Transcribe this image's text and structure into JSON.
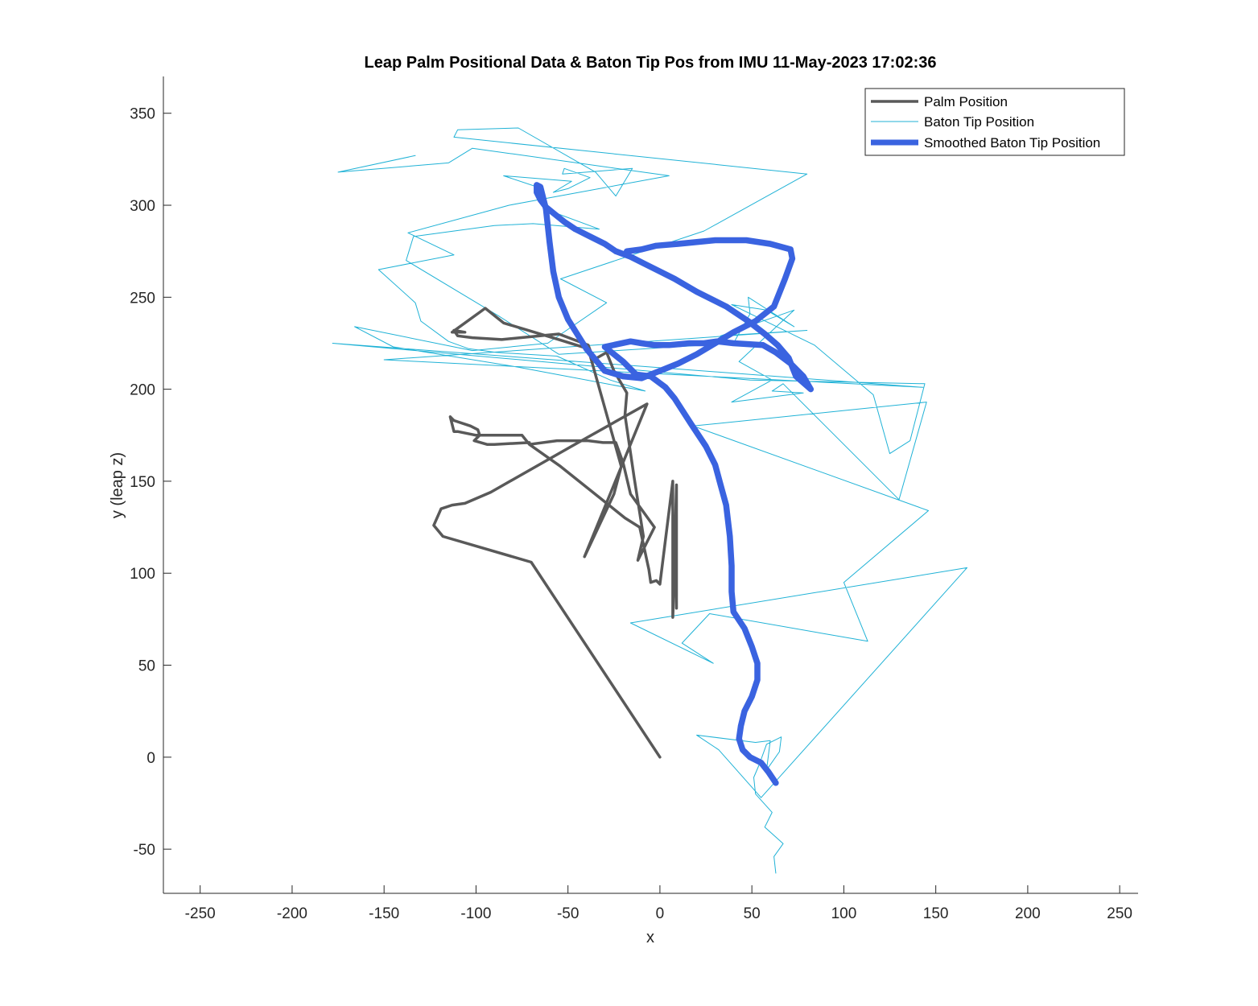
{
  "chart_data": {
    "type": "line",
    "title": "Leap Palm Positional Data & Baton Tip Pos from IMU 11-May-2023 17:02:36",
    "xlabel": "x",
    "ylabel": "y (leap z)",
    "xlim": [
      -270,
      260
    ],
    "ylim": [
      -74,
      370
    ],
    "xticks": [
      -250,
      -200,
      -150,
      -100,
      -50,
      0,
      50,
      100,
      150,
      200,
      250
    ],
    "yticks": [
      -50,
      0,
      50,
      100,
      150,
      200,
      250,
      300,
      350
    ],
    "xtick_labels": [
      "-250",
      "-200",
      "-150",
      "-100",
      "-50",
      "0",
      "50",
      "100",
      "150",
      "200",
      "250"
    ],
    "ytick_labels": [
      "-50",
      "0",
      "50",
      "100",
      "150",
      "200",
      "250",
      "300",
      "350"
    ],
    "grid": false,
    "legend_position": "top-right",
    "series": [
      {
        "name": "Palm Position",
        "color": "#595959",
        "style": "medium",
        "x": [
          0,
          -70,
          -118,
          -123,
          -119,
          -113,
          -106,
          -92,
          -48,
          -7,
          -41,
          -25,
          -21,
          -39,
          -55,
          -85,
          -95,
          -113,
          -106,
          -112,
          -110,
          -102,
          -86,
          -55,
          -39,
          -36,
          -29,
          -25,
          -18,
          -19,
          -14,
          -9,
          -12,
          -3,
          -16,
          -20,
          -24,
          -31,
          -39,
          -45,
          -56,
          -71,
          -71,
          -90,
          -94,
          -101,
          -98,
          -99,
          -103,
          -112,
          -113,
          -114,
          -113,
          -112,
          -110,
          -100,
          -75,
          -71,
          -54,
          -19,
          -11,
          -6,
          -5,
          -2,
          0,
          7,
          7,
          7,
          8,
          7,
          9,
          9
        ],
        "y": [
          0,
          106,
          120,
          126,
          135,
          137,
          138,
          144,
          169,
          192,
          109,
          143,
          158,
          222,
          227,
          236,
          244,
          231,
          231,
          232,
          229,
          228,
          227,
          230,
          224,
          216,
          220,
          210,
          198,
          186,
          152,
          120,
          107,
          125,
          143,
          160,
          171,
          171,
          172,
          172,
          172,
          170,
          171,
          170,
          170,
          172,
          175,
          178,
          180,
          183,
          184,
          185,
          181,
          177,
          177,
          175,
          175,
          170,
          158,
          130,
          125,
          102,
          95,
          96,
          94,
          150,
          116,
          76,
          100,
          79,
          148,
          81
        ]
      },
      {
        "name": "Baton Tip Position",
        "color": "#20B2D6",
        "style": "thin",
        "x": [
          63,
          62,
          67,
          57,
          61,
          52,
          51,
          54,
          58,
          66,
          65,
          58,
          60,
          52,
          20,
          32,
          55,
          167,
          -16,
          29,
          12,
          27,
          113,
          100,
          146,
          18,
          145,
          130,
          67,
          61,
          78,
          39,
          61,
          43,
          73,
          33,
          80,
          -150,
          143,
          -178,
          49,
          144,
          136,
          125,
          116,
          84,
          39,
          58,
          73,
          48,
          49,
          40,
          -55,
          -88,
          -138,
          -134,
          -90,
          -69,
          -33,
          -60,
          -64,
          -85,
          -48,
          -58,
          -50,
          -38,
          -52,
          -53,
          -15,
          -24,
          -35,
          -77,
          -110,
          -112,
          80,
          24,
          -54,
          -29,
          -61,
          -102,
          -166,
          -145,
          -77,
          -8,
          -27,
          -56,
          -89,
          -104,
          -115,
          -130,
          -133,
          -153,
          -112,
          -137,
          -82,
          5,
          -102,
          -115,
          -175,
          -133
        ],
        "y": [
          -63,
          -54,
          -47,
          -38,
          -30,
          -20,
          -11,
          -4,
          7,
          11,
          3,
          -7,
          9,
          8,
          12,
          4,
          -22,
          103,
          73,
          51,
          62,
          78,
          63,
          95,
          134,
          180,
          193,
          140,
          203,
          199,
          198,
          193,
          205,
          215,
          243,
          229,
          232,
          216,
          201,
          225,
          205,
          203,
          172,
          165,
          197,
          224,
          246,
          243,
          234,
          250,
          241,
          225,
          219,
          240,
          270,
          283,
          289,
          290,
          287,
          297,
          309,
          316,
          313,
          307,
          309,
          315,
          320,
          317,
          320,
          305,
          318,
          342,
          341,
          337,
          317,
          286,
          260,
          247,
          225,
          221,
          234,
          223,
          212,
          199,
          205,
          218,
          220,
          222,
          226,
          237,
          247,
          265,
          273,
          285,
          300,
          316,
          331,
          323,
          318,
          327
        ]
      },
      {
        "name": "Smoothed Baton Tip Position",
        "color": "#3A63E0",
        "style": "thick",
        "x": [
          63,
          59,
          55,
          49,
          45,
          43,
          44,
          46,
          50,
          53,
          53,
          50,
          46,
          40,
          39,
          39,
          38,
          36,
          33,
          30,
          25,
          17,
          8,
          3,
          -5,
          -13,
          -20,
          -30,
          -16,
          -10,
          -3,
          5,
          16,
          24,
          31,
          40,
          56,
          63,
          71,
          78,
          82,
          74,
          70,
          64,
          57,
          48,
          36,
          20,
          8,
          0,
          -8,
          -16,
          -24,
          -30,
          -38,
          -46,
          -52,
          -57,
          -62,
          -65,
          -67,
          -67,
          -65,
          -62,
          -60,
          -58,
          -55,
          -50,
          -40,
          -30,
          -20,
          -10,
          0,
          10,
          20,
          30,
          40,
          52,
          62,
          68,
          72,
          71,
          60,
          47,
          30,
          10,
          -2,
          -10,
          -18
        ],
        "y": [
          -14,
          -8,
          -3,
          0,
          4,
          10,
          17,
          25,
          33,
          42,
          51,
          60,
          70,
          79,
          90,
          104,
          120,
          137,
          148,
          159,
          169,
          181,
          195,
          201,
          207,
          208,
          215,
          223,
          226,
          225,
          224,
          224,
          225,
          225,
          226,
          225,
          224,
          220,
          214,
          207,
          200,
          207,
          217,
          224,
          230,
          237,
          245,
          253,
          260,
          264,
          268,
          272,
          275,
          279,
          283,
          287,
          291,
          295,
          299,
          303,
          307,
          311,
          310,
          298,
          280,
          264,
          250,
          238,
          222,
          210,
          207,
          206,
          210,
          214,
          219,
          225,
          231,
          237,
          245,
          260,
          271,
          276,
          279,
          281,
          281,
          279,
          278,
          276,
          275
        ]
      }
    ]
  }
}
